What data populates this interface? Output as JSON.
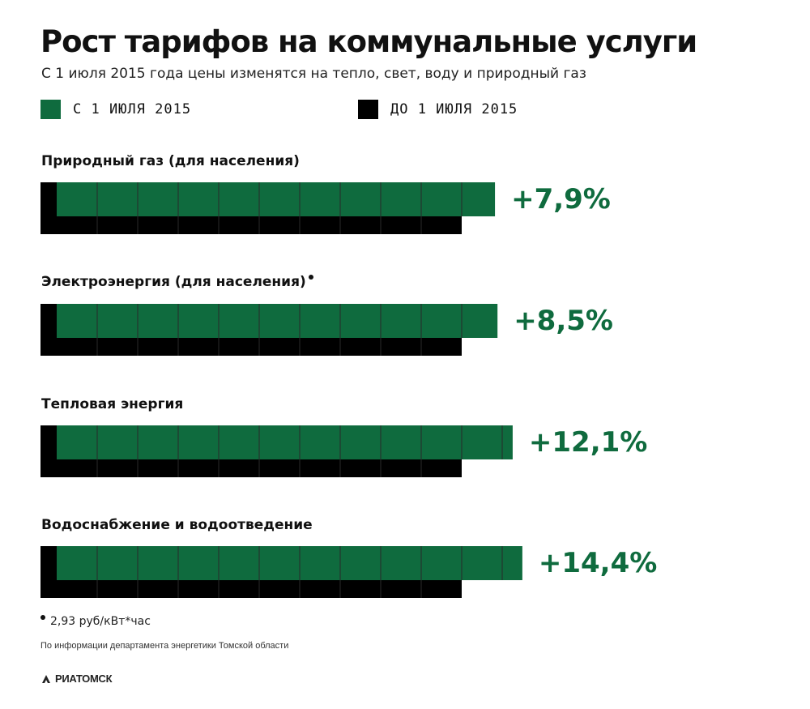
{
  "title": "Рост тарифов на коммунальные услуги",
  "subtitle": "С 1 июля 2015 года цены изменятся на тепло, свет, воду и природный газ",
  "colors": {
    "new": "#0f6b3e",
    "old": "#000000",
    "grid": "#2a2a2a"
  },
  "legend": {
    "new_label": "С 1 ИЮЛЯ 2015",
    "old_label": "ДО 1 ИЮЛЯ 2015"
  },
  "chart_data": {
    "type": "bar",
    "orientation": "horizontal",
    "categories": [
      "Природный газ (для населения)",
      "Электроэнергия (для населения)",
      "Тепловая энергия",
      "Водоснабжение и водоотведение"
    ],
    "series": [
      {
        "name": "ДО 1 ИЮЛЯ 2015",
        "values": [
          100,
          100,
          100,
          100
        ]
      },
      {
        "name": "С 1 ИЮЛЯ 2015",
        "values": [
          107.9,
          108.5,
          112.1,
          114.4
        ]
      }
    ],
    "data_labels": [
      "+7,9%",
      "+8,5%",
      "+12,1%",
      "+14,4%"
    ],
    "footnote_marker_on": "Электроэнергия (для населения)",
    "legend_position": "top-left"
  },
  "footnote": "2,93 руб/кВт*час",
  "source": "По информации департамента энергетики Томской области",
  "brand": "РИАТОМСК"
}
